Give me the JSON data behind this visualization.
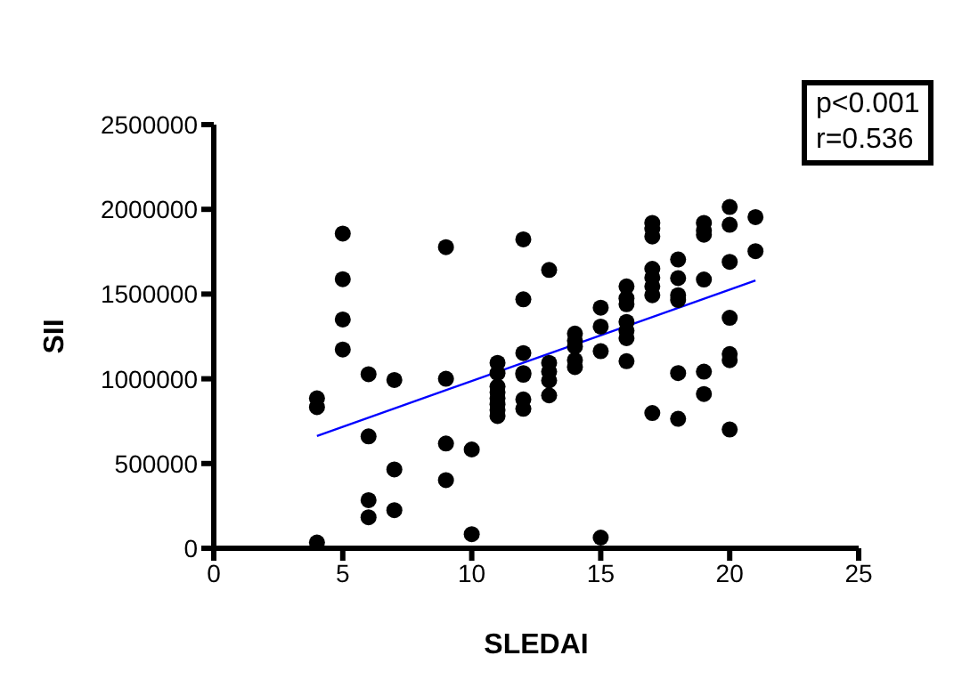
{
  "chart_data": {
    "type": "scatter",
    "xlabel": "SLEDAI",
    "ylabel": "SII",
    "xlim": [
      0,
      25
    ],
    "xticks": [
      0,
      5,
      10,
      15,
      20,
      25
    ],
    "ylim": [
      0,
      2500000
    ],
    "yticks": [
      0,
      500000,
      1000000,
      1500000,
      2000000,
      2500000
    ],
    "annotations": [
      "p<0.001",
      "r=0.536"
    ],
    "series": [
      {
        "marker": "circle",
        "color": "#000000",
        "x": [
          4,
          4,
          4,
          5,
          5,
          5,
          5,
          6,
          6,
          6,
          6,
          7,
          7,
          7,
          9,
          9,
          9,
          9,
          10,
          10,
          11,
          11,
          11,
          11,
          11,
          11,
          11,
          11,
          12,
          12,
          12,
          12,
          12,
          12,
          12,
          13,
          13,
          13,
          13,
          13,
          14,
          14,
          14,
          14,
          14,
          15,
          15,
          15,
          15,
          16,
          16,
          16,
          16,
          16,
          16,
          16,
          17,
          17,
          17,
          17,
          17,
          17,
          17,
          17,
          18,
          18,
          18,
          18,
          18,
          18,
          19,
          19,
          19,
          19,
          19,
          19,
          20,
          20,
          20,
          20,
          20,
          20,
          20,
          21,
          21
        ],
        "values": [
          885000,
          833000,
          34000,
          1857000,
          1588000,
          1350000,
          1173000,
          1027000,
          660000,
          284000,
          183000,
          993000,
          465000,
          225000,
          1777000,
          1000000,
          618000,
          402000,
          583000,
          83000,
          1094000,
          1034000,
          954000,
          920000,
          885000,
          850000,
          816000,
          780000,
          1823000,
          1469000,
          1152000,
          1034000,
          1024000,
          878000,
          823000,
          1642000,
          1094000,
          1042000,
          990000,
          902000,
          1267000,
          1225000,
          1190000,
          1110000,
          1069000,
          1420000,
          1308000,
          1163000,
          63000,
          1545000,
          1475000,
          1440000,
          1336000,
          1284000,
          1240000,
          1104000,
          1920000,
          1885000,
          1840000,
          1649000,
          1597000,
          1545000,
          1493000,
          798000,
          1704000,
          1594000,
          1493000,
          1465000,
          1034000,
          764000,
          1920000,
          1875000,
          1850000,
          1586000,
          1042000,
          910000,
          2014000,
          1909000,
          1690000,
          1360000,
          1146000,
          1110000,
          701000,
          1954000,
          1753000
        ]
      },
      {
        "type": "line",
        "marker": "none",
        "color": "#0000ff",
        "x": [
          4,
          21
        ],
        "values": [
          663000,
          1580000
        ]
      }
    ]
  }
}
